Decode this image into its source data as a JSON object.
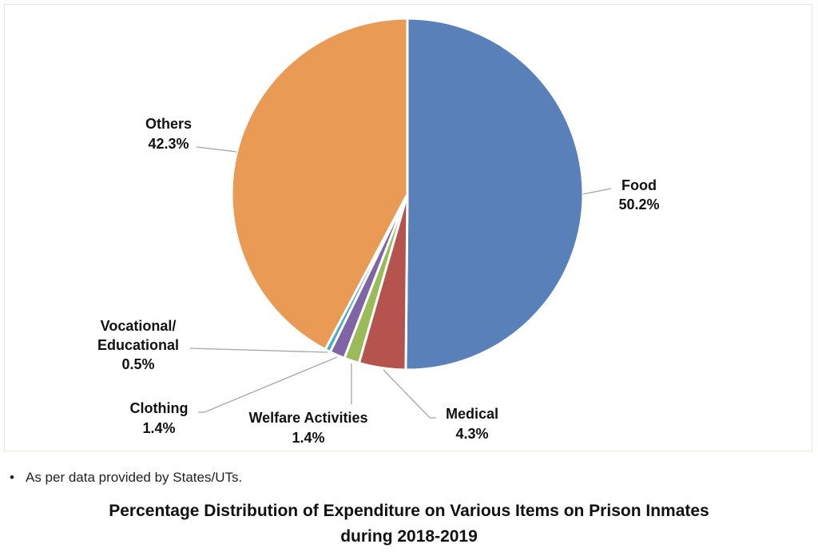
{
  "chart_data": {
    "type": "pie",
    "title": "Percentage Distribution of Expenditure on Various Items on Prison Inmates during 2018-2019",
    "title_lines": [
      "Percentage Distribution of Expenditure on Various Items on Prison Inmates",
      "during 2018-2019"
    ],
    "slices": [
      {
        "label": "Food",
        "value": 50.2,
        "value_label": "50.2%",
        "color": "#5a80b9"
      },
      {
        "label": "Medical",
        "value": 4.3,
        "value_label": "4.3%",
        "color": "#b5534f"
      },
      {
        "label": "Welfare Activities",
        "value": 1.4,
        "value_label": "1.4%",
        "color": "#9bbb59"
      },
      {
        "label": "Clothing",
        "value": 1.4,
        "value_label": "1.4%",
        "color": "#7f65a5"
      },
      {
        "label": "Vocational/ Educational",
        "label_lines": [
          "Vocational/",
          "Educational"
        ],
        "value": 0.5,
        "value_label": "0.5%",
        "color": "#4bacc6"
      },
      {
        "label": "Others",
        "value": 42.3,
        "value_label": "42.3%",
        "color": "#e99a55"
      }
    ],
    "start": "top, clockwise",
    "legend": "none (data labels with leader lines)"
  },
  "note": {
    "bullet": "•",
    "text": "As per data provided by States/UTs."
  }
}
